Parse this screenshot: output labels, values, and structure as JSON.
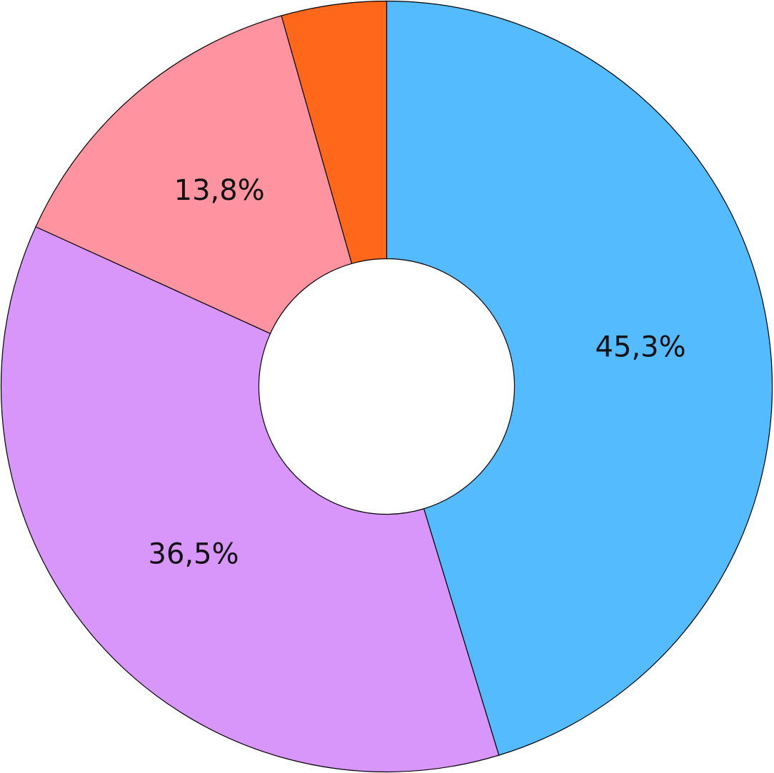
{
  "chart_data": {
    "type": "donut",
    "values": [
      45.3,
      36.5,
      13.8,
      4.4
    ],
    "value_labels": [
      "45,3%",
      "36,5%",
      "13,8%",
      null
    ],
    "colors": [
      "#55bbff",
      "#d895fa",
      "#ff94a0",
      "#ff671b"
    ]
  }
}
